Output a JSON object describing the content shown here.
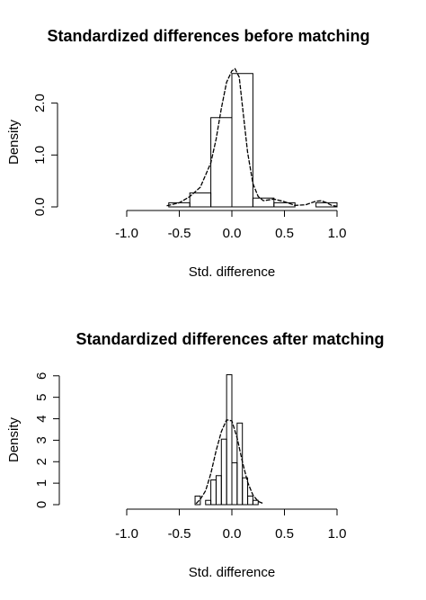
{
  "chart_data": [
    {
      "type": "histogram",
      "title": "Standardized differences before matching",
      "xlabel": "Std. difference",
      "ylabel": "Density",
      "xlim": [
        -1.0,
        1.0
      ],
      "ylim": [
        0,
        2.6
      ],
      "xticks": [
        -1.0,
        -0.5,
        0.0,
        0.5,
        1.0
      ],
      "xtick_labels": [
        "-1.0",
        "-0.5",
        "0.0",
        "0.5",
        "1.0"
      ],
      "yticks": [
        0,
        1,
        2
      ],
      "ytick_labels": [
        "0.0",
        "1.0",
        "2.0"
      ],
      "grid": false,
      "bins": [
        {
          "x0": -0.6,
          "x1": -0.4,
          "density": 0.08
        },
        {
          "x0": -0.4,
          "x1": -0.2,
          "density": 0.27
        },
        {
          "x0": -0.2,
          "x1": 0.0,
          "density": 1.72
        },
        {
          "x0": 0.0,
          "x1": 0.2,
          "density": 2.57
        },
        {
          "x0": 0.2,
          "x1": 0.4,
          "density": 0.17
        },
        {
          "x0": 0.4,
          "x1": 0.6,
          "density": 0.08
        },
        {
          "x0": 0.6,
          "x1": 0.8,
          "density": 0.0
        },
        {
          "x0": 0.8,
          "x1": 1.0,
          "density": 0.08
        }
      ],
      "density_curve": {
        "x": [
          -0.62,
          -0.5,
          -0.4,
          -0.3,
          -0.2,
          -0.15,
          -0.1,
          -0.05,
          0.0,
          0.03,
          0.07,
          0.1,
          0.15,
          0.2,
          0.25,
          0.3,
          0.4,
          0.5,
          0.6,
          0.7,
          0.8,
          0.85,
          0.9,
          0.95,
          1.0
        ],
        "y": [
          0.02,
          0.08,
          0.2,
          0.38,
          0.85,
          1.3,
          1.9,
          2.4,
          2.62,
          2.66,
          2.5,
          1.95,
          1.05,
          0.45,
          0.2,
          0.12,
          0.15,
          0.1,
          0.03,
          0.04,
          0.11,
          0.12,
          0.08,
          0.03,
          0.01
        ]
      }
    },
    {
      "type": "histogram",
      "title": "Standardized differences after matching",
      "xlabel": "Std. difference",
      "ylabel": "Density",
      "xlim": [
        -1.0,
        1.0
      ],
      "ylim": [
        0,
        6.2
      ],
      "xticks": [
        -1.0,
        -0.5,
        0.0,
        0.5,
        1.0
      ],
      "xtick_labels": [
        "-1.0",
        "-0.5",
        "0.0",
        "0.5",
        "1.0"
      ],
      "yticks": [
        0,
        1,
        2,
        3,
        4,
        5,
        6
      ],
      "ytick_labels": [
        "0",
        "1",
        "2",
        "3",
        "4",
        "5",
        "6"
      ],
      "grid": false,
      "bins": [
        {
          "x0": -0.35,
          "x1": -0.3,
          "density": 0.4
        },
        {
          "x0": -0.3,
          "x1": -0.25,
          "density": 0.0
        },
        {
          "x0": -0.25,
          "x1": -0.2,
          "density": 0.2
        },
        {
          "x0": -0.2,
          "x1": -0.15,
          "density": 1.15
        },
        {
          "x0": -0.15,
          "x1": -0.1,
          "density": 1.35
        },
        {
          "x0": -0.1,
          "x1": -0.05,
          "density": 3.05
        },
        {
          "x0": -0.05,
          "x1": 0.0,
          "density": 6.05
        },
        {
          "x0": 0.0,
          "x1": 0.05,
          "density": 1.95
        },
        {
          "x0": 0.05,
          "x1": 0.1,
          "density": 3.8
        },
        {
          "x0": 0.1,
          "x1": 0.15,
          "density": 1.25
        },
        {
          "x0": 0.15,
          "x1": 0.2,
          "density": 0.4
        },
        {
          "x0": 0.2,
          "x1": 0.25,
          "density": 0.2
        }
      ],
      "density_curve": {
        "x": [
          -0.34,
          -0.3,
          -0.25,
          -0.2,
          -0.15,
          -0.1,
          -0.05,
          0.0,
          0.05,
          0.1,
          0.15,
          0.2,
          0.25,
          0.3
        ],
        "y": [
          0.05,
          0.25,
          0.65,
          1.45,
          2.5,
          3.4,
          3.95,
          3.9,
          3.1,
          2.0,
          1.05,
          0.45,
          0.15,
          0.05
        ]
      }
    }
  ]
}
